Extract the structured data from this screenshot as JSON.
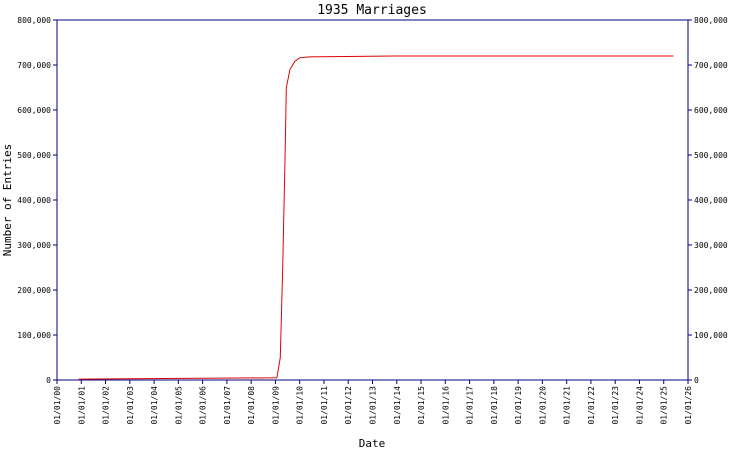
{
  "chart_data": {
    "type": "line",
    "title": "1935 Marriages",
    "x_label": "Date",
    "y_label": "Number of Entries",
    "x": [
      0.9,
      3.8,
      9.06,
      9.2,
      9.3,
      9.4,
      9.45,
      9.6,
      9.8,
      10.0,
      10.4,
      13.9,
      25.4
    ],
    "values": [
      2000,
      3000,
      5000,
      50000,
      250000,
      500000,
      650000,
      690000,
      708000,
      716000,
      718000,
      720000,
      720000
    ],
    "color": "#dd0000",
    "axis_color": "#000080",
    "xlim": [
      0,
      26
    ],
    "xticks": [
      {
        "value": 0,
        "label": "01/01/00"
      },
      {
        "value": 1,
        "label": "01/01/01"
      },
      {
        "value": 2,
        "label": "01/01/02"
      },
      {
        "value": 3,
        "label": "01/01/03"
      },
      {
        "value": 4,
        "label": "01/01/04"
      },
      {
        "value": 5,
        "label": "01/01/05"
      },
      {
        "value": 6,
        "label": "01/01/06"
      },
      {
        "value": 7,
        "label": "01/01/07"
      },
      {
        "value": 8,
        "label": "01/01/08"
      },
      {
        "value": 9,
        "label": "01/01/09"
      },
      {
        "value": 10,
        "label": "01/01/10"
      },
      {
        "value": 11,
        "label": "01/01/11"
      },
      {
        "value": 12,
        "label": "01/01/12"
      },
      {
        "value": 13,
        "label": "01/01/13"
      },
      {
        "value": 14,
        "label": "01/01/14"
      },
      {
        "value": 15,
        "label": "01/01/15"
      },
      {
        "value": 16,
        "label": "01/01/16"
      },
      {
        "value": 17,
        "label": "01/01/17"
      },
      {
        "value": 18,
        "label": "01/01/18"
      },
      {
        "value": 19,
        "label": "01/01/19"
      },
      {
        "value": 20,
        "label": "01/01/20"
      },
      {
        "value": 21,
        "label": "01/01/21"
      },
      {
        "value": 22,
        "label": "01/01/22"
      },
      {
        "value": 23,
        "label": "01/01/23"
      },
      {
        "value": 24,
        "label": "01/01/24"
      },
      {
        "value": 25,
        "label": "01/01/25"
      },
      {
        "value": 26,
        "label": "01/01/26"
      }
    ],
    "ylim": [
      0,
      800000
    ],
    "yticks": [
      0,
      {
        "value": 100000,
        "label": "100,000"
      },
      {
        "value": 200000,
        "label": "200,000"
      },
      {
        "value": 300000,
        "label": "300,000"
      },
      {
        "value": 400000,
        "label": "400,000"
      },
      {
        "value": 500000,
        "label": "500,000"
      },
      {
        "value": 600000,
        "label": "600,000"
      },
      {
        "value": 700000,
        "label": "700,000"
      },
      {
        "value": 800000,
        "label": "800,000"
      }
    ],
    "mirror_y_axis": true
  }
}
